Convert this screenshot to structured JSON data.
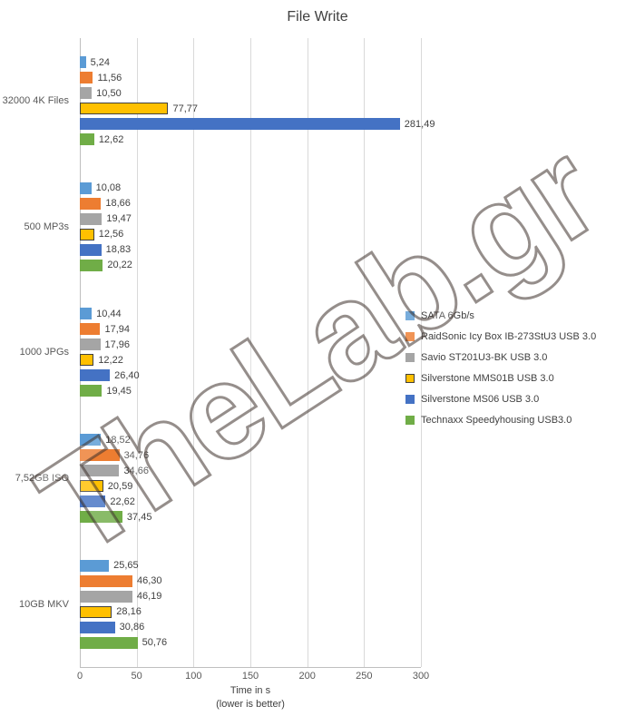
{
  "watermark": {
    "text": "TheLab.gr"
  },
  "chart_data": {
    "type": "bar",
    "orientation": "horizontal",
    "title": "File Write",
    "xlabel": "Time in s",
    "xlabel_note": "(lower is better)",
    "xlim": [
      0,
      300
    ],
    "xticks": [
      0,
      50,
      100,
      150,
      200,
      250,
      300
    ],
    "grid": true,
    "legend_position": "right",
    "value_label_format": "comma-decimal-2",
    "categories": [
      "32000 4K Files",
      "500 MP3s",
      "1000 JPGs",
      "7,52GB ISO",
      "10GB MKV"
    ],
    "series": [
      {
        "name": "SATA 6Gb/s",
        "color": "#5b9bd5",
        "values": [
          5.24,
          10.08,
          10.44,
          18.52,
          25.65
        ]
      },
      {
        "name": "RaidSonic Icy Box IB-273StU3 USB 3.0",
        "color": "#ed7d31",
        "values": [
          11.56,
          18.66,
          17.94,
          34.76,
          46.3
        ]
      },
      {
        "name": "Savio ST201U3-BK USB 3.0",
        "color": "#a5a5a5",
        "values": [
          10.5,
          19.47,
          17.96,
          34.66,
          46.19
        ]
      },
      {
        "name": "Silverstone MMS01B USB 3.0",
        "color": "#ffc000",
        "border": "#404040",
        "values": [
          77.77,
          12.56,
          12.22,
          20.59,
          28.16
        ]
      },
      {
        "name": "Silverstone MS06 USB 3.0",
        "color": "#4472c4",
        "values": [
          281.49,
          18.83,
          26.4,
          22.62,
          30.86
        ]
      },
      {
        "name": "Technaxx Speedyhousing USB3.0",
        "color": "#70ad47",
        "values": [
          12.62,
          20.22,
          19.45,
          37.45,
          50.76
        ]
      }
    ]
  }
}
